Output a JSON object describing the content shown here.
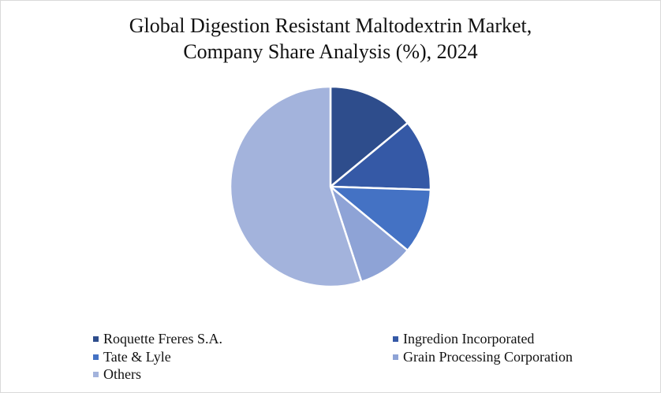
{
  "chart_data": {
    "type": "pie",
    "title": "Global Digestion Resistant Maltodextrin Market, Company Share Analysis (%), 2024",
    "title_lines": [
      "Global Digestion Resistant Maltodextrin Market,",
      "Company Share Analysis (%), 2024"
    ],
    "categories": [
      "Roquette Freres S.A.",
      "Ingredion Incorporated",
      "Tate & Lyle",
      "Grain Processing Corporation",
      "Others"
    ],
    "values": [
      14,
      11.5,
      10.5,
      9,
      55
    ],
    "colors": [
      "#2e4d8c",
      "#3559a6",
      "#4472c4",
      "#8ea3d6",
      "#a3b3dc"
    ],
    "legend_position": "bottom"
  }
}
